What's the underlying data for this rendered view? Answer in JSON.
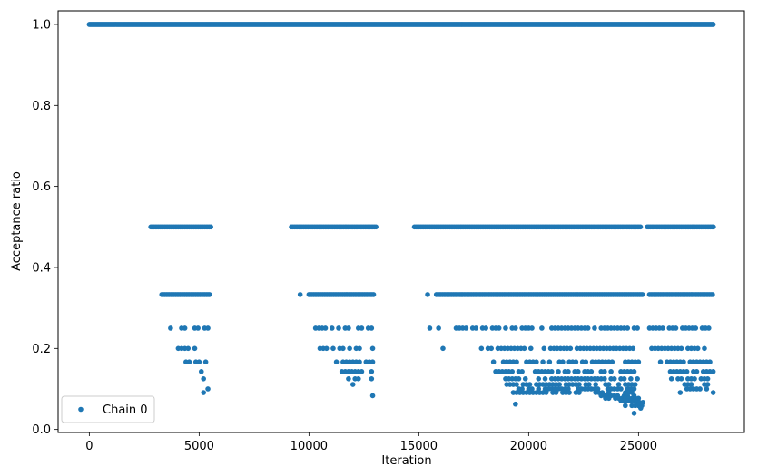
{
  "chart_data": {
    "type": "scatter",
    "xlabel": "Iteration",
    "ylabel": "Acceptance ratio",
    "xlim": [
      -1420,
      29820
    ],
    "ylim": [
      -0.0075,
      1.0335
    ],
    "xticks": [
      0,
      5000,
      10000,
      15000,
      20000,
      25000
    ],
    "xtick_labels": [
      "0",
      "5000",
      "10000",
      "15000",
      "20000",
      "25000"
    ],
    "yticks": [
      0.0,
      0.2,
      0.4,
      0.6,
      0.8,
      1.0
    ],
    "ytick_labels": [
      "0.0",
      "0.2",
      "0.4",
      "0.6",
      "0.8",
      "1.0"
    ],
    "grid": false,
    "legend_position": "lower-left",
    "series": [
      {
        "name": "Chain 0",
        "color": "#1f77b4",
        "marker": "circle",
        "bands": [
          {
            "y": 1.0,
            "x_ranges": [
              [
                0,
                28400
              ]
            ]
          },
          {
            "y": 0.5,
            "x_ranges": [
              [
                2800,
                5550
              ],
              [
                9200,
                13050
              ],
              [
                14800,
                25150
              ],
              [
                25400,
                28450
              ]
            ]
          },
          {
            "y": 0.333,
            "x_ranges": [
              [
                3300,
                5500
              ],
              [
                10000,
                13000
              ],
              [
                15800,
                25200
              ],
              [
                25500,
                28400
              ]
            ],
            "isolated_x": [
              9600,
              15400
            ]
          },
          {
            "y": 0.25,
            "x_ranges": [
              [
                4200,
                5500
              ],
              [
                10300,
                13000
              ],
              [
                16700,
                25100
              ],
              [
                25500,
                28400
              ]
            ],
            "isolated_x": [
              3700,
              15500,
              15900
            ]
          },
          {
            "y": 0.2,
            "x_ranges": [
              [
                3900,
                5400
              ],
              [
                10500,
                13000
              ],
              [
                17700,
                25000
              ],
              [
                25600,
                28400
              ]
            ],
            "isolated_x": [
              16100
            ]
          },
          {
            "y": 0.1667,
            "x_ranges": [
              [
                4400,
                5300
              ],
              [
                11100,
                13000
              ],
              [
                18400,
                25000
              ],
              [
                26000,
                28400
              ]
            ]
          },
          {
            "y": 0.1429,
            "x_ranges": [
              [
                11500,
                12900
              ],
              [
                18500,
                25000
              ],
              [
                26300,
                28400
              ]
            ],
            "isolated_x": [
              5100
            ]
          },
          {
            "y": 0.125,
            "x_ranges": [
              [
                11800,
                12900
              ],
              [
                18800,
                25000
              ],
              [
                26500,
                28300
              ]
            ],
            "isolated_x": [
              5200
            ]
          },
          {
            "y": 0.1111,
            "x_ranges": [
              [
                19000,
                25000
              ],
              [
                26800,
                28200
              ]
            ],
            "isolated_x": [
              12000
            ]
          },
          {
            "y": 0.1,
            "x_ranges": [
              [
                19100,
                25000
              ],
              [
                27200,
                28100
              ]
            ],
            "isolated_x": [
              5400
            ]
          },
          {
            "y": 0.0909,
            "x_ranges": [
              [
                19300,
                24900
              ]
            ],
            "isolated_x": [
              5200,
              26900,
              28400
            ]
          },
          {
            "y": 0.0833,
            "x_ranges": [
              [
                23300,
                25200
              ]
            ],
            "isolated_x": [
              12900
            ]
          },
          {
            "y": 0.0769,
            "x_ranges": [
              [
                23500,
                25100
              ]
            ]
          },
          {
            "y": 0.0714,
            "x_ranges": [
              [
                24200,
                25000
              ]
            ]
          },
          {
            "y": 0.0667,
            "x_ranges": [
              [
                24600,
                25200
              ]
            ]
          },
          {
            "y": 0.0625,
            "x_ranges": [],
            "isolated_x": [
              19400
            ]
          },
          {
            "y": 0.0588,
            "x_ranges": [
              [
                24400,
                25300
              ]
            ]
          },
          {
            "y": 0.0526,
            "x_ranges": [],
            "isolated_x": [
              25100
            ]
          },
          {
            "y": 0.04,
            "x_ranges": [],
            "isolated_x": [
              24800
            ]
          }
        ]
      }
    ]
  }
}
